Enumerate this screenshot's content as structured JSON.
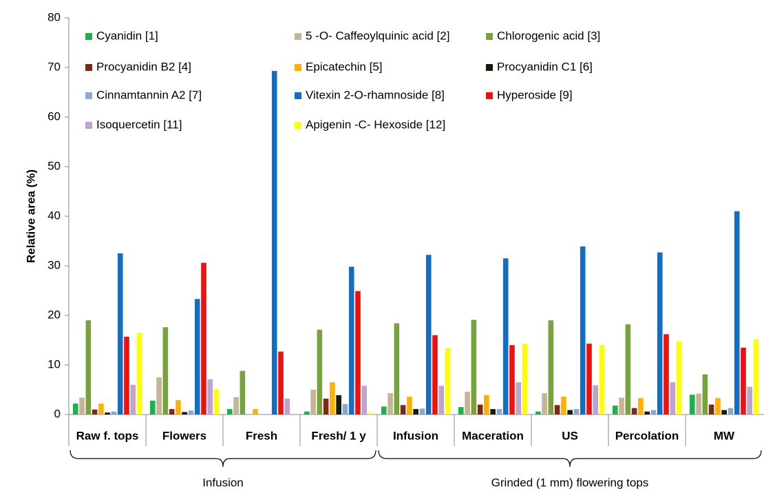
{
  "chart_data": {
    "type": "bar",
    "y_label": "Relative area (%)",
    "ylim": [
      0,
      80
    ],
    "yticks": [
      0,
      10,
      20,
      30,
      40,
      50,
      60,
      70,
      80
    ],
    "grid": false,
    "legend": "top-left",
    "categories": [
      "Raw f. tops",
      "Flowers",
      "Fresh",
      "Fresh/ 1 y",
      "Infusion",
      "Maceration",
      "US",
      "Percolation",
      "MW"
    ],
    "groups": [
      {
        "name": "Infusion",
        "members": [
          "Raw f. tops",
          "Flowers",
          "Fresh",
          "Fresh/ 1 y"
        ]
      },
      {
        "name": "Grinded (1 mm) flowering tops",
        "members": [
          "Infusion",
          "Maceration",
          "US",
          "Percolation",
          "MW"
        ]
      }
    ],
    "series": [
      {
        "name": "Cyanidin [1]",
        "color": "#1fb04e",
        "values": [
          2.2,
          2.8,
          1.1,
          0.6,
          1.6,
          1.5,
          0.6,
          1.8,
          4.0
        ]
      },
      {
        "name": "5 -O- Caffeoylquinic acid [2]",
        "color": "#c4b595",
        "values": [
          3.4,
          7.5,
          3.5,
          5.0,
          4.3,
          4.6,
          4.3,
          3.4,
          4.2
        ]
      },
      {
        "name": "Chlorogenic acid [3]",
        "color": "#77a33a",
        "values": [
          19.0,
          17.6,
          8.8,
          17.1,
          18.4,
          19.1,
          19.0,
          18.2,
          8.1
        ]
      },
      {
        "name": "Procyanidin B2 [4]",
        "color": "#7b2a18",
        "values": [
          1.0,
          1.1,
          0,
          3.2,
          1.9,
          2.0,
          1.9,
          1.3,
          2.0
        ]
      },
      {
        "name": "Epicatechin [5]",
        "color": "#ffb000",
        "values": [
          2.2,
          2.9,
          1.1,
          6.5,
          3.6,
          3.9,
          3.6,
          3.3,
          3.3
        ]
      },
      {
        "name": "Procyanidin C1 [6]",
        "color": "#1a1a0a",
        "values": [
          0.4,
          0.5,
          0,
          3.9,
          1.1,
          1.1,
          0.9,
          0.6,
          0.9
        ]
      },
      {
        "name": "Cinnamtannin A2 [7]",
        "color": "#8aa9d0",
        "values": [
          0.6,
          0.8,
          0,
          2.1,
          1.2,
          1.1,
          1.1,
          0.9,
          1.3
        ]
      },
      {
        "name": "Vitexin 2-O-rhamnoside [8]",
        "color": "#0f6fc6",
        "values": [
          32.5,
          23.3,
          69.3,
          29.8,
          32.2,
          31.5,
          33.9,
          32.7,
          41.0
        ]
      },
      {
        "name": "Hyperoside [9]",
        "color": "#ee1111",
        "values": [
          15.7,
          30.6,
          12.7,
          24.9,
          16.0,
          14.0,
          14.3,
          16.2,
          13.5
        ]
      },
      {
        "name": "Isoquercetin [11]",
        "color": "#c0a3cc",
        "values": [
          6.0,
          7.1,
          3.2,
          5.8,
          5.8,
          6.5,
          5.9,
          6.5,
          5.6
        ]
      },
      {
        "name": "Apigenin -C- Hexoside [12]",
        "color": "#ffff00",
        "values": [
          16.5,
          5.1,
          0,
          0.4,
          13.4,
          14.3,
          14.0,
          14.8,
          15.2
        ]
      }
    ]
  }
}
